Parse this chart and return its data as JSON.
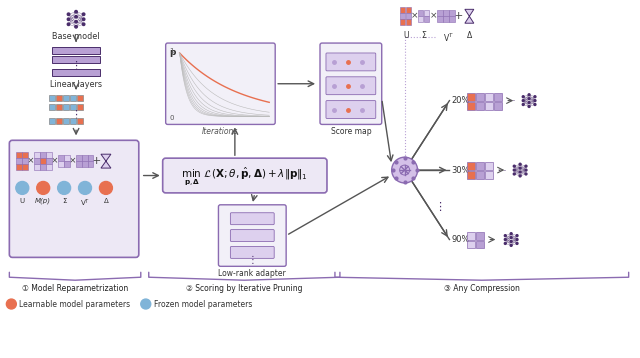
{
  "bg_color": "#ffffff",
  "purple_dark": "#4a2d6b",
  "purple_mid": "#8b6bb1",
  "purple_light": "#b8a0d4",
  "purple_very_light": "#ddd0ee",
  "orange_color": "#e87050",
  "blue_color": "#80b4d8",
  "section1_label": "① Model Reparametrization",
  "section2_label": "② Scoring by Iterative Pruning",
  "section3_label": "③ Any Compression",
  "legend1": "Learnable model parameters",
  "legend2": "Frozen model parameters"
}
